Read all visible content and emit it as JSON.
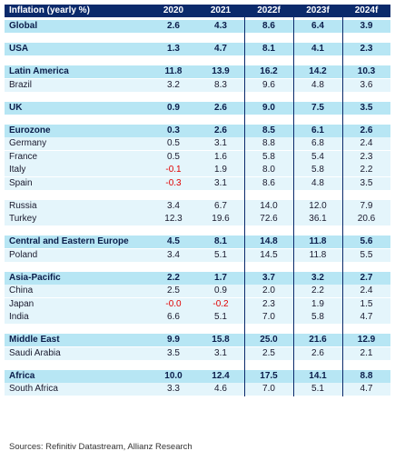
{
  "table": {
    "headers": [
      "Inflation (yearly %)",
      "2020",
      "2021",
      "2022f",
      "2023f",
      "2024f"
    ],
    "rows": [
      {
        "kind": "group",
        "label": "Global",
        "values": [
          "2.6",
          "4.3",
          "8.6",
          "6.4",
          "3.9"
        ]
      },
      {
        "kind": "gap"
      },
      {
        "kind": "group",
        "label": "USA",
        "values": [
          "1.3",
          "4.7",
          "8.1",
          "4.1",
          "2.3"
        ]
      },
      {
        "kind": "gap"
      },
      {
        "kind": "group",
        "label": "Latin America",
        "values": [
          "11.8",
          "13.9",
          "16.2",
          "14.2",
          "10.3"
        ]
      },
      {
        "kind": "sub",
        "label": "Brazil",
        "values": [
          "3.2",
          "8.3",
          "9.6",
          "4.8",
          "3.6"
        ]
      },
      {
        "kind": "gap"
      },
      {
        "kind": "group",
        "label": "UK",
        "values": [
          "0.9",
          "2.6",
          "9.0",
          "7.5",
          "3.5"
        ]
      },
      {
        "kind": "gap"
      },
      {
        "kind": "group",
        "label": "Eurozone",
        "values": [
          "0.3",
          "2.6",
          "8.5",
          "6.1",
          "2.6"
        ]
      },
      {
        "kind": "sub",
        "label": "Germany",
        "values": [
          "0.5",
          "3.1",
          "8.8",
          "6.8",
          "2.4"
        ]
      },
      {
        "kind": "sub",
        "label": "France",
        "values": [
          "0.5",
          "1.6",
          "5.8",
          "5.4",
          "2.3"
        ]
      },
      {
        "kind": "sub",
        "label": "Italy",
        "values": [
          "-0.1",
          "1.9",
          "8.0",
          "5.8",
          "2.2"
        ]
      },
      {
        "kind": "sub",
        "label": "Spain",
        "values": [
          "-0.3",
          "3.1",
          "8.6",
          "4.8",
          "3.5"
        ]
      },
      {
        "kind": "gap"
      },
      {
        "kind": "sub",
        "label": "Russia",
        "values": [
          "3.4",
          "6.7",
          "14.0",
          "12.0",
          "7.9"
        ]
      },
      {
        "kind": "sub",
        "label": "Turkey",
        "values": [
          "12.3",
          "19.6",
          "72.6",
          "36.1",
          "20.6"
        ]
      },
      {
        "kind": "gap"
      },
      {
        "kind": "group",
        "label": "Central and Eastern Europe",
        "values": [
          "4.5",
          "8.1",
          "14.8",
          "11.8",
          "5.6"
        ]
      },
      {
        "kind": "sub",
        "label": "Poland",
        "values": [
          "3.4",
          "5.1",
          "14.5",
          "11.8",
          "5.5"
        ]
      },
      {
        "kind": "gap"
      },
      {
        "kind": "group",
        "label": "Asia-Pacific",
        "values": [
          "2.2",
          "1.7",
          "3.7",
          "3.2",
          "2.7"
        ]
      },
      {
        "kind": "sub",
        "label": "China",
        "values": [
          "2.5",
          "0.9",
          "2.0",
          "2.2",
          "2.4"
        ]
      },
      {
        "kind": "sub",
        "label": "Japan",
        "values": [
          "-0.0",
          "-0.2",
          "2.3",
          "1.9",
          "1.5"
        ]
      },
      {
        "kind": "sub",
        "label": "India",
        "values": [
          "6.6",
          "5.1",
          "7.0",
          "5.8",
          "4.7"
        ]
      },
      {
        "kind": "gap"
      },
      {
        "kind": "group",
        "label": "Middle East",
        "values": [
          "9.9",
          "15.8",
          "25.0",
          "21.6",
          "12.9"
        ]
      },
      {
        "kind": "sub",
        "label": "Saudi Arabia",
        "values": [
          "3.5",
          "3.1",
          "2.5",
          "2.6",
          "2.1"
        ]
      },
      {
        "kind": "gap"
      },
      {
        "kind": "group",
        "label": "Africa",
        "values": [
          "10.0",
          "12.4",
          "17.5",
          "14.1",
          "8.8"
        ]
      },
      {
        "kind": "sub",
        "label": "South Africa",
        "values": [
          "3.3",
          "4.6",
          "7.0",
          "5.1",
          "4.7"
        ]
      }
    ]
  },
  "source": "Sources: Refinitiv Datastream, Allianz Research",
  "colors": {
    "header": "#0b2a6b",
    "group": "#b7e6f4",
    "sub": "#e4f5fb",
    "negative": "#e00000"
  }
}
